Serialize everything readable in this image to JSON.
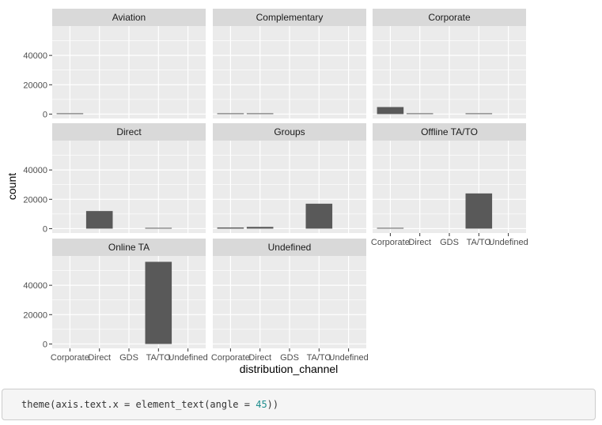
{
  "chart_data": {
    "type": "bar",
    "facet_by": "market_segment",
    "facet_layout": "wrap 3 columns",
    "facets": [
      {
        "name": "Aviation",
        "values": [
          200,
          0,
          0,
          0,
          0
        ]
      },
      {
        "name": "Complementary",
        "values": [
          100,
          500,
          0,
          0,
          0
        ]
      },
      {
        "name": "Corporate",
        "values": [
          4800,
          400,
          0,
          400,
          0
        ]
      },
      {
        "name": "Direct",
        "values": [
          0,
          12000,
          0,
          400,
          0
        ]
      },
      {
        "name": "Groups",
        "values": [
          800,
          1200,
          0,
          17000,
          0
        ]
      },
      {
        "name": "Offline TA/TO",
        "values": [
          300,
          0,
          0,
          24000,
          0
        ]
      },
      {
        "name": "Online TA",
        "values": [
          0,
          0,
          0,
          56000,
          0
        ]
      },
      {
        "name": "Undefined",
        "values": [
          0,
          0,
          0,
          0,
          0
        ]
      }
    ],
    "categories": [
      "Corporate",
      "Direct",
      "GDS",
      "TA/TO",
      "Undefined"
    ],
    "xlabel": "distribution_channel",
    "ylabel": "count",
    "ylim": [
      -3000,
      60000
    ],
    "y_ticks": [
      0,
      20000,
      40000
    ],
    "grid": true,
    "colors": {
      "bar": "#595959",
      "panel": "#ebebeb",
      "strip": "#d9d9d9",
      "grid": "#ffffff"
    }
  },
  "code": {
    "prefix": "theme(axis.text.x = element_text(angle = ",
    "number": "45",
    "suffix": "))"
  }
}
